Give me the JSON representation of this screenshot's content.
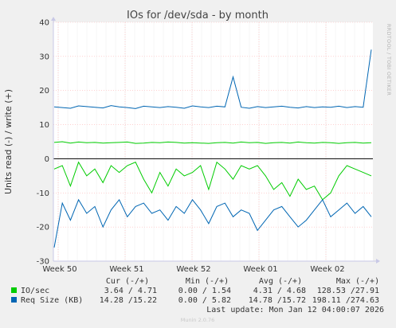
{
  "chart_data": {
    "type": "line",
    "title": "IOs for /dev/sda - by month",
    "ylabel": "Units read (-) / write (+)",
    "side_label": "RRDTOOL / TOBI OETIKER",
    "ylim": [
      -30,
      40
    ],
    "yticks": [
      -30,
      -20,
      -10,
      0,
      10,
      20,
      30,
      40
    ],
    "xticks": [
      "Week 50",
      "Week 51",
      "Week 52",
      "Week 01",
      "Week 02"
    ],
    "colors": {
      "io": "#00cc00",
      "req": "#0066b3",
      "grid": "#ffb3b3",
      "zero": "#000000"
    },
    "series": [
      {
        "name": "IO/sec",
        "direction": "write",
        "color": "#00cc00",
        "values": [
          4.8,
          5.0,
          4.6,
          4.9,
          4.7,
          4.8,
          4.6,
          4.7,
          4.8,
          4.9,
          4.5,
          4.6,
          4.8,
          4.7,
          4.9,
          4.8,
          4.6,
          4.7,
          4.6,
          4.5,
          4.7,
          4.8,
          4.6,
          4.9,
          4.7,
          4.8,
          4.5,
          4.7,
          4.8,
          4.6,
          4.9,
          4.7,
          4.6,
          4.8,
          4.7,
          4.5,
          4.7,
          4.8,
          4.6,
          4.7
        ]
      },
      {
        "name": "IO/sec",
        "direction": "read",
        "color": "#00cc00",
        "values": [
          -3,
          -2,
          -8,
          -1,
          -5,
          -3,
          -7,
          -2,
          -4,
          -2,
          -1,
          -6,
          -10,
          -4,
          -8,
          -3,
          -5,
          -4,
          -2,
          -9,
          -1,
          -3,
          -6,
          -2,
          -3,
          -2,
          -5,
          -9,
          -7,
          -11,
          -6,
          -9,
          -8,
          -12,
          -10,
          -5,
          -2,
          -3,
          -4,
          -5
        ]
      },
      {
        "name": "Req Size (KB)",
        "direction": "write",
        "color": "#0066b3",
        "values": [
          15.2,
          15.0,
          14.8,
          15.5,
          15.3,
          15.1,
          14.9,
          15.6,
          15.2,
          15.0,
          14.7,
          15.4,
          15.2,
          15.0,
          15.3,
          15.1,
          14.8,
          15.5,
          15.2,
          15.0,
          15.4,
          15.2,
          24.0,
          15.1,
          14.8,
          15.3,
          15.0,
          15.2,
          15.4,
          15.1,
          14.9,
          15.3,
          15.0,
          15.2,
          15.1,
          15.4,
          15.0,
          15.3,
          15.1,
          32.0
        ]
      },
      {
        "name": "Req Size (KB)",
        "direction": "read",
        "color": "#0066b3",
        "values": [
          -26,
          -13,
          -18,
          -12,
          -16,
          -14,
          -20,
          -15,
          -12,
          -17,
          -14,
          -13,
          -16,
          -15,
          -18,
          -14,
          -16,
          -12,
          -15,
          -19,
          -14,
          -13,
          -17,
          -15,
          -16,
          -21,
          -18,
          -15,
          -14,
          -17,
          -20,
          -18,
          -15,
          -12,
          -17,
          -15,
          -13,
          -16,
          -14,
          -17
        ]
      }
    ]
  },
  "legend": {
    "headers": {
      "cur": "Cur (-/+)",
      "min": "Min (-/+)",
      "avg": "Avg (-/+)",
      "max": "Max (-/+)"
    },
    "rows": [
      {
        "name": "IO/sec",
        "cur": "3.64 / 4.71",
        "min": "0.00 / 1.54",
        "avg": "4.31 / 4.68",
        "max": "128.53 /27.91"
      },
      {
        "name": "Req Size (KB)",
        "cur": "14.28 /15.22",
        "min": "0.00 / 5.82",
        "avg": "14.78 /15.72",
        "max": "198.11 /274.63"
      }
    ],
    "last_update": "Last update: Mon Jan 12 04:00:07 2026"
  },
  "footer": "Munin 2.0.76"
}
